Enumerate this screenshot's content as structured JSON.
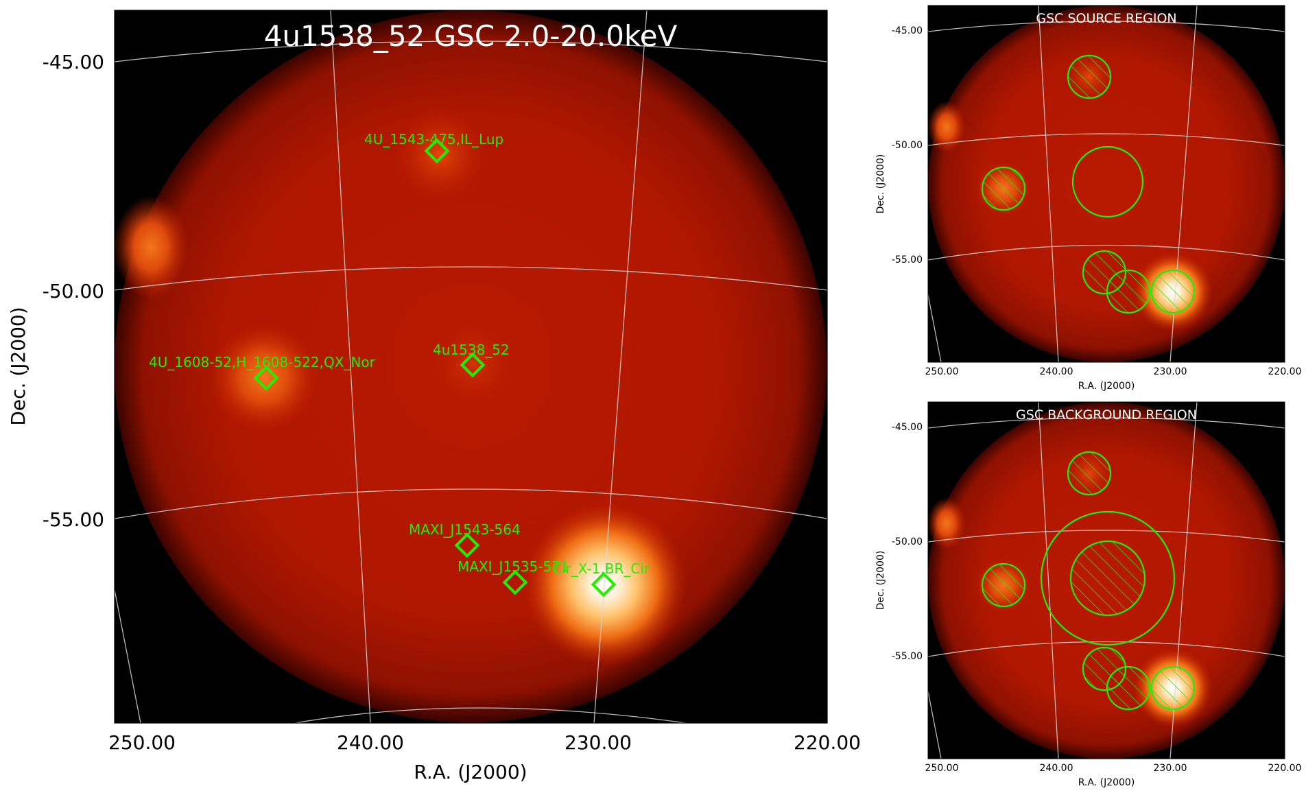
{
  "main": {
    "title": "4u1538_52 GSC 2.0-20.0keV",
    "xlabel": "R.A. (J2000)",
    "ylabel": "Dec. (J2000)",
    "xticks": [
      "250.00",
      "240.00",
      "230.00",
      "220.00"
    ],
    "yticks": [
      "-45.00",
      "-50.00",
      "-55.00"
    ],
    "sources": [
      {
        "name": "4U_1543-475,IL_Lup"
      },
      {
        "name": "4U_1608-52,H_1608-522,QX_Nor"
      },
      {
        "name": "4u1538_52"
      },
      {
        "name": "MAXI_J1543-564"
      },
      {
        "name": "MAXI_J1535-571"
      },
      {
        "name": "Cir_X-1,BR_Cir"
      }
    ]
  },
  "source_panel": {
    "title": "GSC SOURCE REGION",
    "xlabel": "R.A. (J2000)",
    "ylabel": "Dec. (J2000)",
    "xticks": [
      "250.00",
      "240.00",
      "230.00",
      "220.00"
    ],
    "yticks": [
      "-45.00",
      "-50.00",
      "-55.00"
    ]
  },
  "background_panel": {
    "title": "GSC BACKGROUND REGION",
    "xlabel": "R.A. (J2000)",
    "ylabel": "Dec. (J2000)",
    "xticks": [
      "250.00",
      "240.00",
      "230.00",
      "220.00"
    ],
    "yticks": [
      "-45.00",
      "-50.00",
      "-55.00"
    ]
  },
  "colors": {
    "region": "#22ee00",
    "background": "#000000",
    "field": "#b51b00",
    "grid": "#d8d8d8"
  }
}
